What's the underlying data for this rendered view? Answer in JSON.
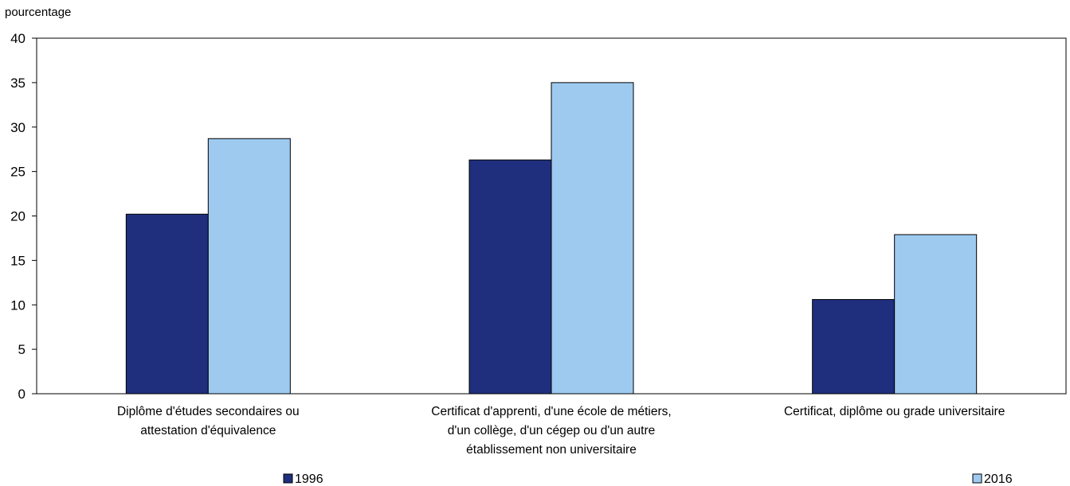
{
  "chart_data": {
    "type": "bar",
    "ylabel": "pourcentage",
    "xlabel": "",
    "title": "",
    "ylim": [
      0,
      40
    ],
    "yticks": [
      0,
      5,
      10,
      15,
      20,
      25,
      30,
      35,
      40
    ],
    "grid": false,
    "legend_position": "bottom",
    "categories": [
      [
        "Diplôme d'études secondaires ou",
        "attestation d'équivalence"
      ],
      [
        "Certificat d'apprenti, d'une école de métiers,",
        "d'un collège, d'un cégep ou d'un autre",
        "établissement non universitaire"
      ],
      [
        "Certificat, diplôme ou grade universitaire"
      ]
    ],
    "series": [
      {
        "name": "1996",
        "color": "#1f2f7e",
        "values": [
          20.2,
          26.3,
          10.6
        ]
      },
      {
        "name": "2016",
        "color": "#9ecaf0",
        "values": [
          28.7,
          35.0,
          17.9
        ]
      }
    ]
  }
}
